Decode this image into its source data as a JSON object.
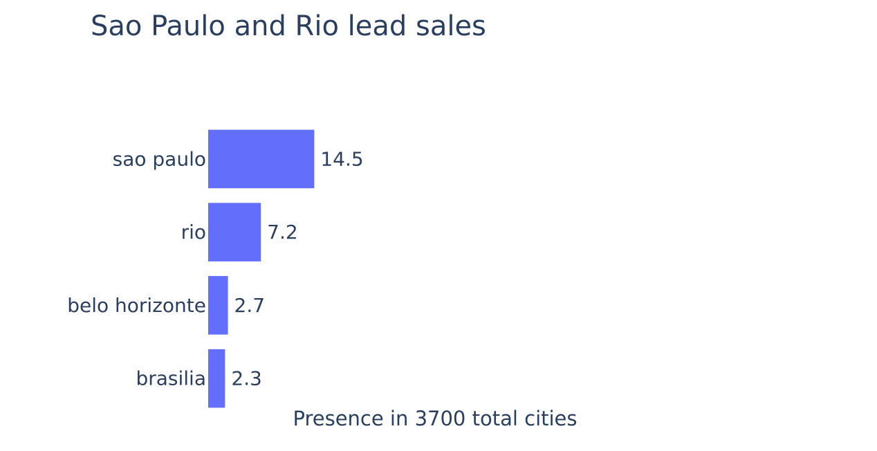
{
  "chart_data": {
    "type": "bar",
    "orientation": "horizontal",
    "title": "Sao Paulo and Rio lead sales",
    "xlabel": "Presence in 3700 total cities",
    "ylabel": "",
    "categories": [
      "sao paulo",
      "rio",
      "belo horizonte",
      "brasilia"
    ],
    "values": [
      14.5,
      7.2,
      2.7,
      2.3
    ],
    "value_labels": [
      "14.5",
      "7.2",
      "2.7",
      "2.3"
    ],
    "xlim": [
      0,
      85
    ],
    "grid": false,
    "legend": "none",
    "bar_color": "#636efa",
    "text_color": "#2a3f5f"
  }
}
